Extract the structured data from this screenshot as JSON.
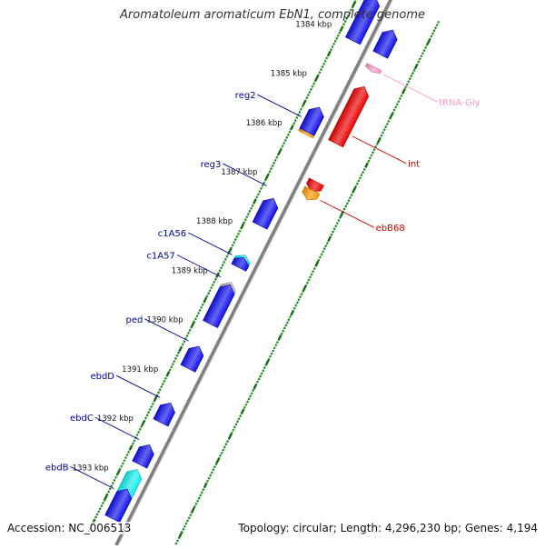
{
  "title": "Aromatoleum aromaticum EbN1, complete genome",
  "accession": "Accession: NC_006513",
  "topology": "Topology: circular; Length: 4,296,230 bp; Genes: 4,194",
  "ticks": [
    {
      "label": "1384 kbp",
      "pos": 1384.0
    },
    {
      "label": "1385 kbp",
      "pos": 1385.0
    },
    {
      "label": "1386 kbp",
      "pos": 1386.0
    },
    {
      "label": "1387 kbp",
      "pos": 1387.0
    },
    {
      "label": "1388 kbp",
      "pos": 1388.0
    },
    {
      "label": "1389 kbp",
      "pos": 1389.0
    },
    {
      "label": "1390 kbp",
      "pos": 1390.0
    },
    {
      "label": "1391 kbp",
      "pos": 1391.0
    },
    {
      "label": "1392 kbp",
      "pos": 1392.0
    },
    {
      "label": "1393 kbp",
      "pos": 1393.0
    }
  ],
  "genes": [
    {
      "strand": "-",
      "start": 1383.2,
      "end": 1384.1,
      "color": "#1010ee",
      "dir": "up"
    },
    {
      "strand": "-",
      "start": 1385.45,
      "end": 1386.0,
      "color": "#ff9900",
      "dir": "up"
    },
    {
      "strand": "-",
      "start": 1385.45,
      "end": 1385.95,
      "color": "#1010ee",
      "dir": "up"
    },
    {
      "strand": "-",
      "start": 1387.3,
      "end": 1387.85,
      "color": "#1010ee",
      "dir": "up"
    },
    {
      "strand": "-",
      "start": 1388.45,
      "end": 1388.65,
      "color": "#11eeee",
      "dir": "up"
    },
    {
      "strand": "-",
      "start": 1388.5,
      "end": 1388.7,
      "color": "#1010ee",
      "dir": "up"
    },
    {
      "strand": "-",
      "start": 1389.0,
      "end": 1389.65,
      "color": "#bbbbbb",
      "dir": "up"
    },
    {
      "strand": "-",
      "start": 1389.05,
      "end": 1389.85,
      "color": "#1010ee",
      "dir": "up"
    },
    {
      "strand": "-",
      "start": 1390.3,
      "end": 1390.75,
      "color": "#1010ee",
      "dir": "up"
    },
    {
      "strand": "-",
      "start": 1391.45,
      "end": 1391.85,
      "color": "#1010ee",
      "dir": "up"
    },
    {
      "strand": "-",
      "start": 1392.3,
      "end": 1392.7,
      "color": "#1010ee",
      "dir": "up"
    },
    {
      "strand": "-",
      "start": 1392.8,
      "end": 1393.7,
      "color": "#11eeee",
      "dir": "up"
    },
    {
      "strand": "-",
      "start": 1393.2,
      "end": 1393.8,
      "color": "#1010ee",
      "dir": "up"
    },
    {
      "strand": "+",
      "start": 1383.6,
      "end": 1384.1,
      "color": "#1010ee",
      "dir": "up"
    },
    {
      "strand": "+",
      "start": 1384.35,
      "end": 1384.45,
      "color": "#ff99cc",
      "dir": "down"
    },
    {
      "strand": "+",
      "start": 1384.75,
      "end": 1385.9,
      "color": "#ee0000",
      "dir": "up"
    },
    {
      "strand": "+",
      "start": 1386.68,
      "end": 1386.88,
      "color": "#ee0000",
      "dir": "down"
    },
    {
      "strand": "+",
      "start": 1386.85,
      "end": 1387.05,
      "color": "#ff9900",
      "dir": "down"
    }
  ],
  "labels": [
    {
      "text": "reg2",
      "pos": 1385.75,
      "strand": "-",
      "color": "#000099"
    },
    {
      "text": "reg3",
      "pos": 1387.15,
      "strand": "-",
      "color": "#000099"
    },
    {
      "text": "c1A56",
      "pos": 1388.55,
      "strand": "-",
      "color": "#000099"
    },
    {
      "text": "c1A57",
      "pos": 1389.0,
      "strand": "-",
      "color": "#000099"
    },
    {
      "text": "ped",
      "pos": 1390.3,
      "strand": "-",
      "color": "#000099"
    },
    {
      "text": "ebdD",
      "pos": 1391.45,
      "strand": "-",
      "color": "#000099"
    },
    {
      "text": "ebdC",
      "pos": 1392.3,
      "strand": "-",
      "color": "#000099"
    },
    {
      "text": "ebdB",
      "pos": 1393.3,
      "strand": "-",
      "color": "#000099"
    },
    {
      "text": "tRNA-Gly",
      "pos": 1384.4,
      "strand": "+",
      "color": "#ff99cc"
    },
    {
      "text": "int",
      "pos": 1385.65,
      "strand": "+",
      "color": "#cc0000"
    },
    {
      "text": "ebB68",
      "pos": 1386.95,
      "strand": "+",
      "color": "#cc0000"
    }
  ]
}
